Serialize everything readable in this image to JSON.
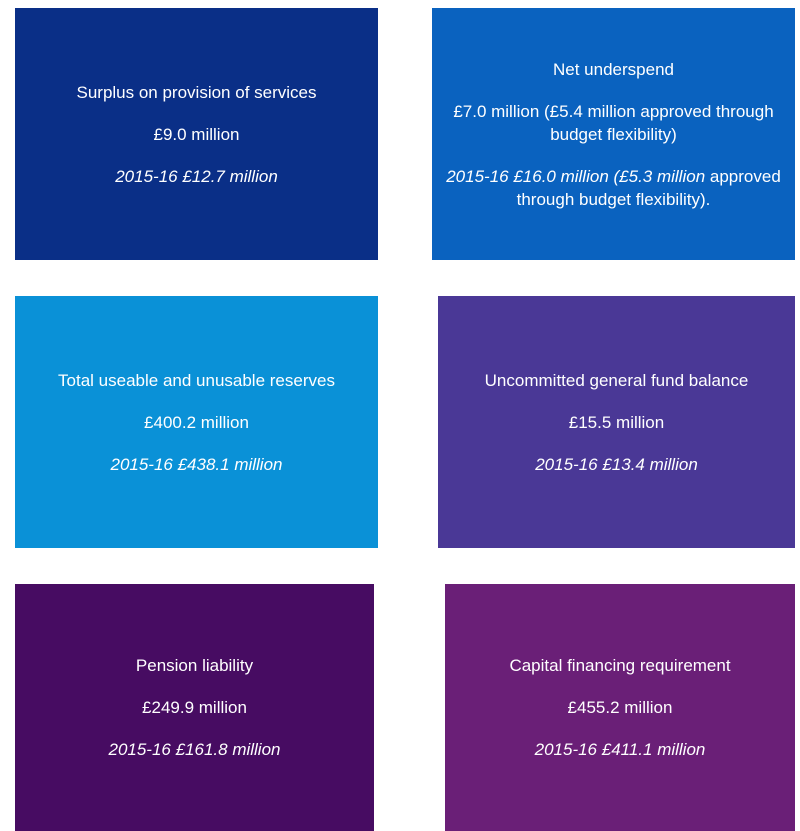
{
  "boxes": [
    {
      "title": "Surplus on provision of services",
      "value": "£9.0 million",
      "prior": "2015-16 £12.7 million"
    },
    {
      "title": "Net underspend",
      "value": "£7.0 million (£5.4 million approved through budget flexibility)",
      "prior": "2015-16 £16.0 million (£5.3 million",
      "prior_continued": "approved through budget flexibility)."
    },
    {
      "title": "Total useable and unusable reserves",
      "value": "£400.2 million",
      "prior": "2015-16 £438.1 million"
    },
    {
      "title": "Uncommitted general fund balance",
      "value": "£15.5 million",
      "prior": "2015-16 £13.4 million"
    },
    {
      "title": "Pension liability",
      "value": "£249.9 million",
      "prior": "2015-16 £161.8 million"
    },
    {
      "title": "Capital financing requirement",
      "value": "£455.2 million",
      "prior": "2015-16 £411.1 million"
    }
  ]
}
